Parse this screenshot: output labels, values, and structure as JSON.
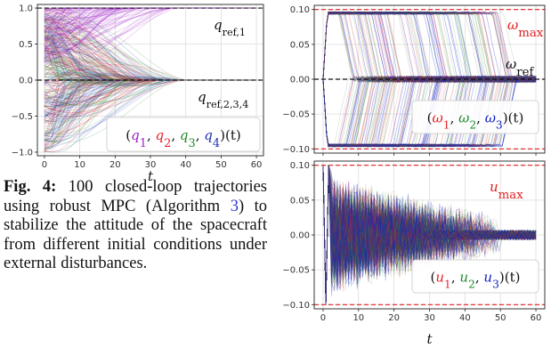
{
  "caption": {
    "label": "Fig. 4:",
    "text_before": "100 closed-loop trajectories using robust MPC (Algorithm",
    "link": "3",
    "text_after": ") to stabilize the attitude of the spacecraft from different initial conditions under external disturbances."
  },
  "colors": {
    "q1": "#a020c8",
    "q2": "#e8202a",
    "q3": "#1e8c2a",
    "q4": "#2030b8",
    "w1": "#e8202a",
    "w2": "#1e8c2a",
    "w3": "#1020c8",
    "u1": "#e8202a",
    "u2": "#1e8c2a",
    "u3": "#1020c8",
    "limit": "#e02020",
    "reference": "#111111"
  },
  "chart_data": [
    {
      "type": "line",
      "panel": "quaternion",
      "n_trajectories": 100,
      "series": [
        {
          "name": "q1",
          "final": 1.0,
          "initial_range": [
            -1.0,
            1.0
          ]
        },
        {
          "name": "q2",
          "final": 0.0,
          "initial_range": [
            -1.0,
            1.0
          ]
        },
        {
          "name": "q3",
          "final": 0.0,
          "initial_range": [
            -1.0,
            1.0
          ]
        },
        {
          "name": "q4",
          "final": 0.0,
          "initial_range": [
            -1.0,
            1.0
          ]
        }
      ],
      "settle_time": 35,
      "reference_lines": [
        {
          "y": 1.0,
          "label_main": "q",
          "label_sub": "ref,1"
        },
        {
          "y": 0.0,
          "label_main": "q",
          "label_sub": "ref,2,3,4"
        }
      ],
      "legend": {
        "open": "(",
        "names": [
          "q",
          "q",
          "q",
          "q"
        ],
        "subs": [
          "1",
          "2",
          "3",
          "4"
        ],
        "close": ")(t)"
      },
      "xlim": [
        -2,
        62
      ],
      "ylim": [
        -1.05,
        1.05
      ],
      "xticks": [
        "0",
        "10",
        "20",
        "30",
        "40",
        "50",
        "60"
      ],
      "yticks": [
        "-1.0",
        "-0.5",
        "0.0",
        "0.5",
        "1.0"
      ],
      "xlabel": "t",
      "grid": true
    },
    {
      "type": "line",
      "panel": "angular-velocity",
      "n_trajectories": 100,
      "series": [
        {
          "name": "omega1"
        },
        {
          "name": "omega2"
        },
        {
          "name": "omega3"
        }
      ],
      "limits": [
        0.1,
        -0.1
      ],
      "saturation_value": 0.095,
      "reference": 0.0,
      "limit_label": {
        "main": "ω",
        "sub": "max"
      },
      "reference_label": {
        "main": "ω",
        "sub": "ref"
      },
      "legend": {
        "open": "(",
        "names": [
          "ω",
          "ω",
          "ω"
        ],
        "subs": [
          "1",
          "2",
          "3"
        ],
        "close": ")(t)"
      },
      "xlim": [
        -2.5,
        62.5
      ],
      "ylim": [
        -0.106,
        0.106
      ],
      "xticks": [],
      "yticks": [
        "-0.10",
        "-0.05",
        "0.00",
        "0.05",
        "0.10"
      ],
      "grid": true
    },
    {
      "type": "line",
      "panel": "control-input",
      "n_trajectories": 100,
      "series": [
        {
          "name": "u1"
        },
        {
          "name": "u2"
        },
        {
          "name": "u3"
        }
      ],
      "limits": [
        0.1,
        -0.1
      ],
      "limit_label": {
        "main": "u",
        "sub": "max"
      },
      "legend": {
        "open": "(",
        "names": [
          "u",
          "u",
          "u"
        ],
        "subs": [
          "1",
          "2",
          "3"
        ],
        "close": ")(t)"
      },
      "xlim": [
        -2.5,
        62.5
      ],
      "ylim": [
        -0.106,
        0.106
      ],
      "xticks": [
        "0",
        "10",
        "20",
        "30",
        "40",
        "50",
        "60"
      ],
      "yticks": [
        "-0.10",
        "-0.05",
        "0.00",
        "0.05",
        "0.10"
      ],
      "xlabel": "t",
      "grid": true
    }
  ]
}
